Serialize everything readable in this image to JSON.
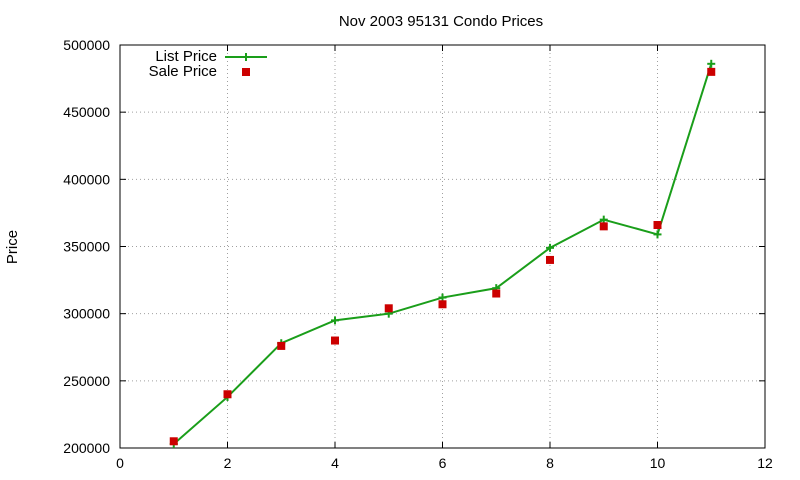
{
  "chart_data": {
    "type": "line",
    "title": "Nov 2003 95131 Condo Prices",
    "xlabel": "",
    "ylabel": "Price",
    "xlim": [
      0,
      12
    ],
    "ylim": [
      200000,
      500000
    ],
    "x_ticks": [
      0,
      2,
      4,
      6,
      8,
      10,
      12
    ],
    "y_ticks": [
      200000,
      250000,
      300000,
      350000,
      400000,
      450000,
      500000
    ],
    "grid": true,
    "legend_position": "top-left",
    "series": [
      {
        "name": "List Price",
        "style": "line-with-plus-markers",
        "color": "#1a9e1a",
        "x": [
          1,
          2,
          3,
          4,
          5,
          6,
          7,
          8,
          9,
          10,
          11
        ],
        "y": [
          203000,
          238000,
          278000,
          295000,
          300000,
          312000,
          319000,
          349000,
          370000,
          359000,
          486000
        ]
      },
      {
        "name": "Sale Price",
        "style": "square-markers",
        "color": "#cc0000",
        "x": [
          1,
          2,
          3,
          4,
          5,
          6,
          7,
          8,
          9,
          10,
          11
        ],
        "y": [
          205000,
          240000,
          276000,
          280000,
          304000,
          307000,
          315000,
          340000,
          365000,
          366000,
          480000
        ]
      }
    ]
  }
}
